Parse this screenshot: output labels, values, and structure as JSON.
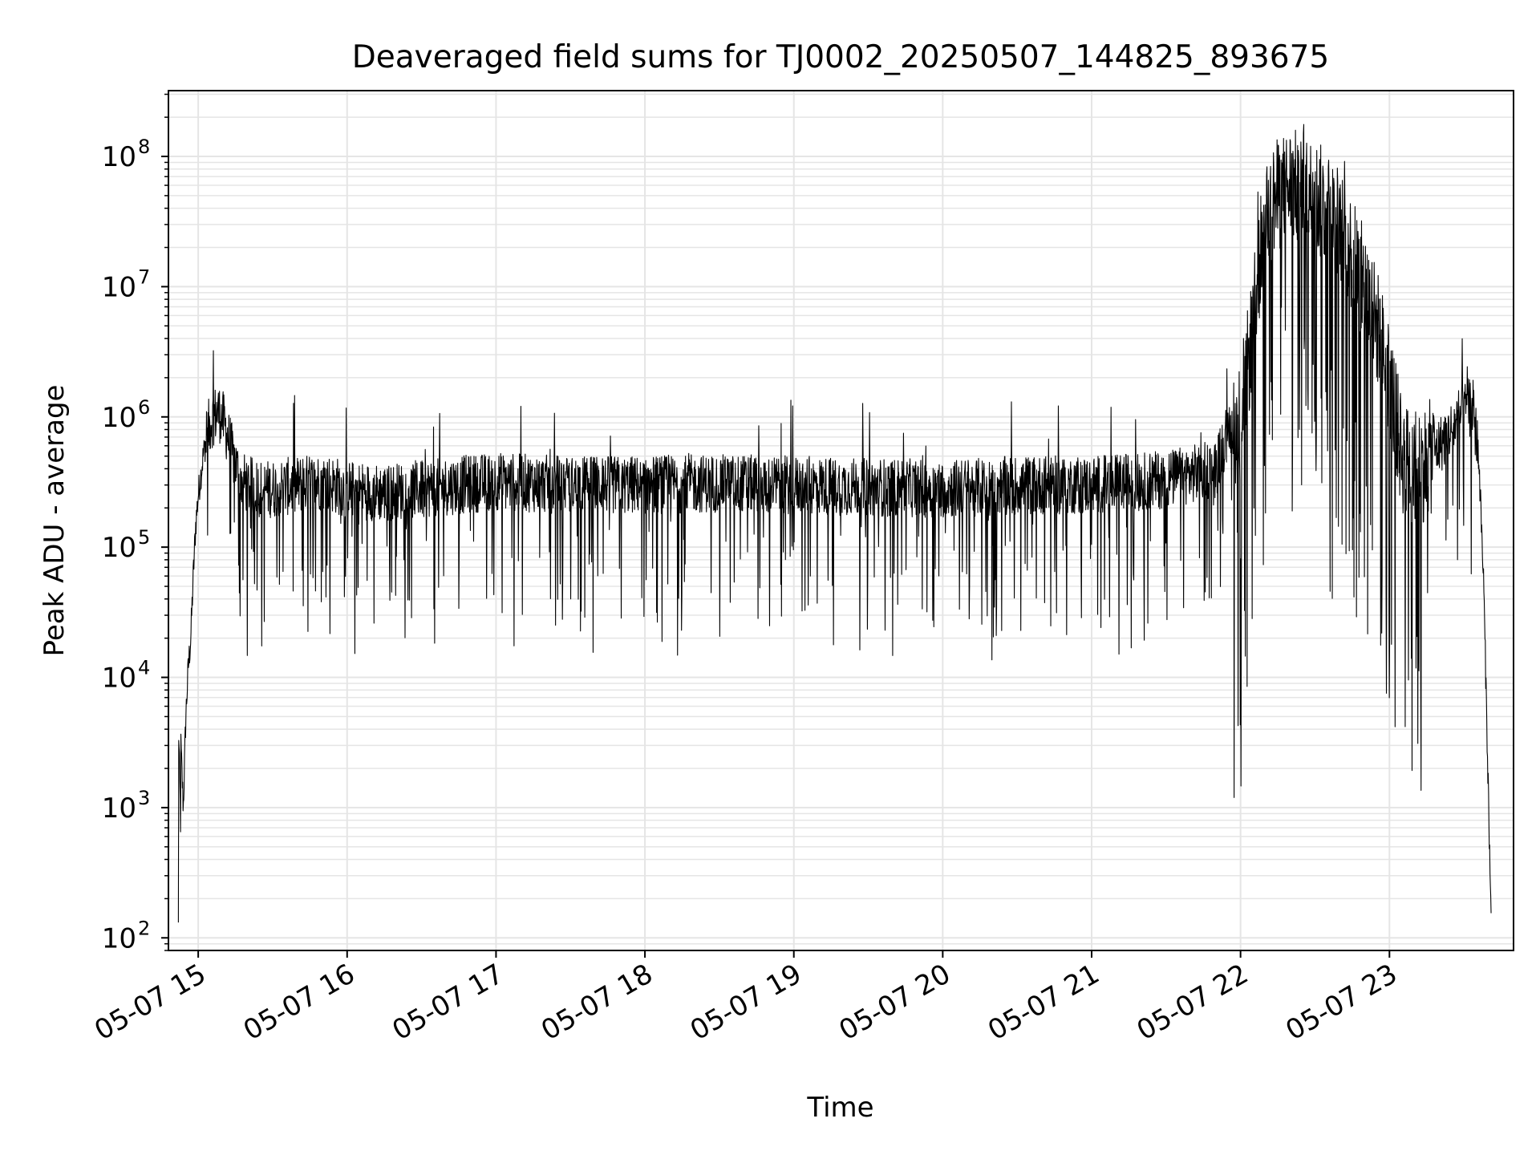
{
  "chart_data": {
    "type": "line",
    "title": "Deaveraged field sums for TJ0002_20250507_144825_893675",
    "xlabel": "Time",
    "ylabel": "Peak ADU - average",
    "yscale": "log",
    "ylim": [
      80,
      320000000
    ],
    "xlim": [
      "2025-05-07 14:48",
      "2025-05-07 23:50"
    ],
    "grid": true,
    "grid_minor": true,
    "line_color": "#000000",
    "grid_color": "#e5e5e5",
    "x_ticks": [
      {
        "value": "2025-05-07 15:00",
        "label": "05-07 15"
      },
      {
        "value": "2025-05-07 16:00",
        "label": "05-07 16"
      },
      {
        "value": "2025-05-07 17:00",
        "label": "05-07 17"
      },
      {
        "value": "2025-05-07 18:00",
        "label": "05-07 18"
      },
      {
        "value": "2025-05-07 19:00",
        "label": "05-07 19"
      },
      {
        "value": "2025-05-07 20:00",
        "label": "05-07 20"
      },
      {
        "value": "2025-05-07 21:00",
        "label": "05-07 21"
      },
      {
        "value": "2025-05-07 22:00",
        "label": "05-07 22"
      },
      {
        "value": "2025-05-07 23:00",
        "label": "05-07 23"
      }
    ],
    "y_ticks": [
      {
        "value": 100,
        "base": "10",
        "exp": "2"
      },
      {
        "value": 1000,
        "base": "10",
        "exp": "3"
      },
      {
        "value": 10000,
        "base": "10",
        "exp": "4"
      },
      {
        "value": 100000,
        "base": "10",
        "exp": "5"
      },
      {
        "value": 1000000,
        "base": "10",
        "exp": "6"
      },
      {
        "value": 10000000,
        "base": "10",
        "exp": "7"
      },
      {
        "value": 100000000,
        "base": "10",
        "exp": "8"
      }
    ],
    "series": [
      {
        "x": [
          "2025-05-07 14:52",
          "2025-05-07 14:52",
          "2025-05-07 14:53",
          "2025-05-07 14:53",
          "2025-05-07 14:54",
          "2025-05-07 14:55",
          "2025-05-07 14:56",
          "2025-05-07 14:57",
          "2025-05-07 14:58",
          "2025-05-07 14:59",
          "2025-05-07 15:00",
          "2025-05-07 15:02",
          "2025-05-07 15:04",
          "2025-05-07 15:06",
          "2025-05-07 15:08",
          "2025-05-07 15:10",
          "2025-05-07 15:12",
          "2025-05-07 15:14",
          "2025-05-07 15:16",
          "2025-05-07 15:18",
          "2025-05-07 15:20",
          "2025-05-07 15:25",
          "2025-05-07 15:30",
          "2025-05-07 15:40",
          "2025-05-07 15:50",
          "2025-05-07 16:00",
          "2025-05-07 16:15",
          "2025-05-07 16:30",
          "2025-05-07 16:45",
          "2025-05-07 17:00",
          "2025-05-07 17:30",
          "2025-05-07 18:00",
          "2025-05-07 18:30",
          "2025-05-07 19:00",
          "2025-05-07 19:30",
          "2025-05-07 20:00",
          "2025-05-07 20:30",
          "2025-05-07 21:00",
          "2025-05-07 21:30",
          "2025-05-07 21:50",
          "2025-05-07 21:55",
          "2025-05-07 22:00",
          "2025-05-07 22:05",
          "2025-05-07 22:10",
          "2025-05-07 22:20",
          "2025-05-07 22:30",
          "2025-05-07 22:40",
          "2025-05-07 22:50",
          "2025-05-07 22:55",
          "2025-05-07 23:00",
          "2025-05-07 23:05",
          "2025-05-07 23:10",
          "2025-05-07 23:15",
          "2025-05-07 23:20",
          "2025-05-07 23:25",
          "2025-05-07 23:28",
          "2025-05-07 23:30",
          "2025-05-07 23:32",
          "2025-05-07 23:34",
          "2025-05-07 23:36",
          "2025-05-07 23:38",
          "2025-05-07 23:40",
          "2025-05-07 23:41"
        ],
        "y": [
          120,
          5000,
          600,
          3000,
          1000,
          5000,
          12000,
          20000,
          60000,
          150000,
          250000,
          500000,
          800000,
          1000000,
          1100000,
          950000,
          700000,
          500000,
          380000,
          320000,
          300000,
          280000,
          280000,
          300000,
          320000,
          280000,
          260000,
          280000,
          300000,
          320000,
          300000,
          300000,
          310000,
          300000,
          290000,
          280000,
          300000,
          300000,
          330000,
          400000,
          800000,
          900000,
          5000000,
          40000000,
          60000000,
          50000000,
          30000000,
          10000000,
          5000000,
          2000000,
          500000,
          400000,
          450000,
          600000,
          800000,
          1000000,
          1100000,
          1200000,
          1000000,
          500000,
          50000,
          1000,
          120
        ]
      }
    ]
  }
}
